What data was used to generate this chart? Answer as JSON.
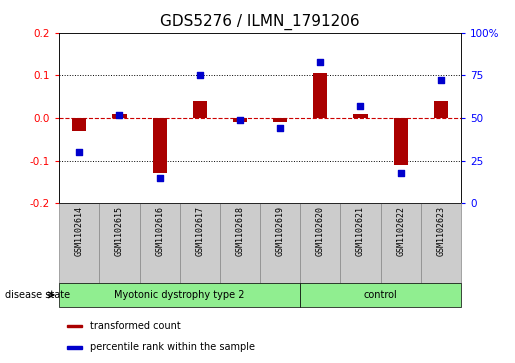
{
  "title": "GDS5276 / ILMN_1791206",
  "samples": [
    "GSM1102614",
    "GSM1102615",
    "GSM1102616",
    "GSM1102617",
    "GSM1102618",
    "GSM1102619",
    "GSM1102620",
    "GSM1102621",
    "GSM1102622",
    "GSM1102623"
  ],
  "transformed_count": [
    -0.03,
    0.01,
    -0.13,
    0.04,
    -0.01,
    -0.01,
    0.105,
    0.01,
    -0.11,
    0.04
  ],
  "percentile_rank": [
    30,
    52,
    15,
    75,
    49,
    44,
    83,
    57,
    18,
    72
  ],
  "groups": [
    {
      "label": "Myotonic dystrophy type 2",
      "start": 0,
      "end": 6,
      "color": "#90EE90"
    },
    {
      "label": "control",
      "start": 6,
      "end": 10,
      "color": "#90EE90"
    }
  ],
  "ylim_left": [
    -0.2,
    0.2
  ],
  "ylim_right": [
    0,
    100
  ],
  "yticks_left": [
    -0.2,
    -0.1,
    0.0,
    0.1,
    0.2
  ],
  "yticks_right": [
    0,
    25,
    50,
    75,
    100
  ],
  "ytick_labels_right": [
    "0",
    "25",
    "50",
    "75",
    "100%"
  ],
  "bar_color": "#AA0000",
  "dot_color": "#0000CC",
  "grid_color": "#000000",
  "zero_line_color": "#CC0000",
  "disease_state_label": "disease state",
  "legend_bar_label": "transformed count",
  "legend_dot_label": "percentile rank within the sample",
  "title_fontsize": 11,
  "tick_fontsize": 7.5,
  "label_fontsize": 8,
  "sample_label_bg": "#cccccc",
  "plot_bg": "#ffffff"
}
